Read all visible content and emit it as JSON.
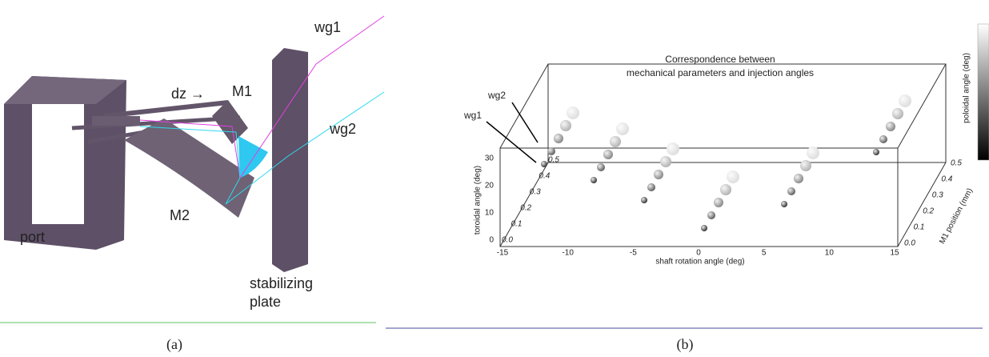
{
  "panel_a": {
    "labels": {
      "wg1": "wg1",
      "dz": "dz →",
      "m1": "M1",
      "wg2": "wg2",
      "m2": "M2",
      "port": "port",
      "plate": [
        "stabilizing",
        "plate"
      ]
    },
    "caption": "(a)"
  },
  "panel_b": {
    "title": [
      "Correspondence between",
      "mechanical parameters and injection angles"
    ],
    "x_axis": {
      "label": "shaft rotation angle (deg)",
      "ticks": [
        "-15",
        "-10",
        "-5",
        "0",
        "5",
        "10",
        "15"
      ]
    },
    "y_axis": {
      "label": "toroidal angle (deg)",
      "ticks": [
        "0",
        "10",
        "20",
        "30"
      ]
    },
    "z_axis": {
      "label": "M1 position (mm)",
      "ticks": [
        "0.0",
        "0.1",
        "0.2",
        "0.3",
        "0.4",
        "0.5"
      ]
    },
    "inner_ticks": [
      "0.0",
      "0.1",
      "0.2",
      "0.3",
      "0.4",
      "0.5"
    ],
    "colorbar_label": "poloidal angle (deg)",
    "annotations": {
      "wg2": "wg2",
      "wg1": "wg1"
    },
    "caption": "(b)"
  }
}
